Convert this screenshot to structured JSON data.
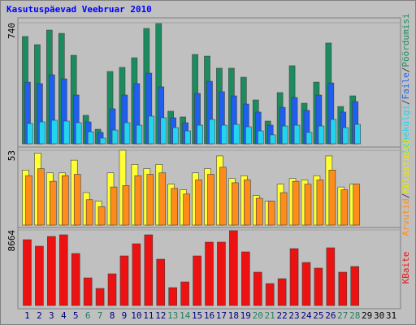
{
  "title": "Kasutuspäevad Veebruar 2010",
  "legend_separator": "/",
  "categories": [
    "1",
    "2",
    "3",
    "4",
    "5",
    "6",
    "7",
    "8",
    "9",
    "10",
    "11",
    "12",
    "13",
    "14",
    "15",
    "16",
    "17",
    "18",
    "19",
    "20",
    "21",
    "22",
    "23",
    "24",
    "25",
    "26",
    "27",
    "28",
    "29",
    "30",
    "31"
  ],
  "category_colors": [
    "#00007f",
    "#00007f",
    "#00007f",
    "#00007f",
    "#00007f",
    "#208060",
    "#208060",
    "#00007f",
    "#00007f",
    "#00007f",
    "#00007f",
    "#00007f",
    "#208060",
    "#208060",
    "#00007f",
    "#00007f",
    "#00007f",
    "#00007f",
    "#00007f",
    "#208060",
    "#208060",
    "#00007f",
    "#00007f",
    "#00007f",
    "#00007f",
    "#00007f",
    "#208060",
    "#208060",
    "#000000",
    "#000000",
    "#000000"
  ],
  "chart_data": [
    {
      "type": "bar",
      "ylim": [
        0,
        740
      ],
      "yticks": [
        740
      ],
      "series": [
        {
          "name": "Pöördumisi",
          "color": "#1b8c5e",
          "values": [
            656,
            606,
            695,
            675,
            541,
            174,
            89,
            442,
            467,
            526,
            705,
            735,
            199,
            164,
            546,
            536,
            462,
            462,
            407,
            268,
            139,
            313,
            477,
            248,
            377,
            616,
            228,
            293,
            null,
            null,
            null
          ]
        },
        {
          "name": "Faile",
          "color": "#1f5ff0",
          "values": [
            377,
            368,
            422,
            397,
            298,
            134,
            70,
            214,
            298,
            368,
            432,
            348,
            159,
            129,
            308,
            382,
            318,
            293,
            243,
            194,
            114,
            223,
            283,
            204,
            298,
            372,
            194,
            258,
            null,
            null,
            null
          ]
        },
        {
          "name": "Lehekülgi",
          "color": "#22d4f0",
          "values": [
            124,
            134,
            144,
            139,
            129,
            74,
            35,
            84,
            129,
            114,
            169,
            159,
            99,
            79,
            114,
            149,
            114,
            119,
            104,
            79,
            55,
            109,
            114,
            70,
            109,
            149,
            99,
            119,
            null,
            null,
            null
          ]
        }
      ]
    },
    {
      "type": "bar",
      "ylim": [
        0,
        53
      ],
      "yticks": [
        53
      ],
      "series": [
        {
          "name": "Külastused",
          "color": "#ffff33",
          "values": [
            39,
            51,
            37,
            37,
            46,
            23,
            17,
            37,
            53,
            43,
            40,
            43,
            29,
            25,
            37,
            40,
            49,
            33,
            35,
            21,
            17,
            29,
            33,
            32,
            35,
            49,
            27,
            29,
            null,
            null,
            null
          ]
        },
        {
          "name": "Arvutid",
          "color": "#ff8c1a",
          "values": [
            35,
            40,
            31,
            35,
            36,
            18,
            13,
            27,
            28,
            35,
            36,
            37,
            26,
            22,
            32,
            36,
            41,
            30,
            32,
            19,
            17,
            23,
            31,
            29,
            32,
            39,
            25,
            29,
            null,
            null,
            null
          ]
        }
      ]
    },
    {
      "type": "bar",
      "ylim": [
        0,
        8664
      ],
      "yticks": [
        8664
      ],
      "series": [
        {
          "name": "KBaite",
          "color": "#ee1111",
          "values": [
            7546,
            6801,
            7919,
            8105,
            5962,
            3167,
            1956,
            3633,
            5683,
            7080,
            8105,
            5310,
            2050,
            2702,
            5683,
            7267,
            7267,
            8571,
            6149,
            3820,
            2515,
            3074,
            6522,
            4937,
            4285,
            6615,
            3820,
            4472,
            null,
            null,
            null
          ]
        }
      ]
    }
  ]
}
